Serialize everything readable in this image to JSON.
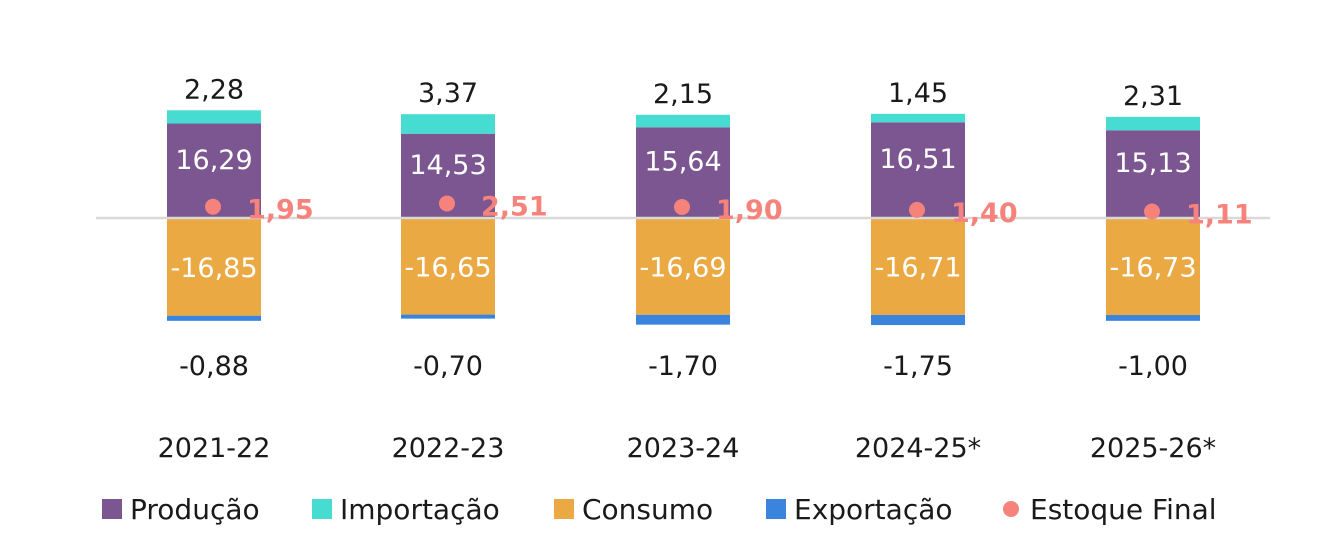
{
  "chart_data": {
    "type": "bar",
    "stacked": true,
    "categories": [
      "2021-22",
      "2022-23",
      "2023-24",
      "2024-25*",
      "2025-26*"
    ],
    "series": [
      {
        "name": "Produção",
        "kind": "bar",
        "color": "#7b5690",
        "values": [
          16.29,
          14.53,
          15.64,
          16.51,
          15.13
        ],
        "labels": [
          "16,29",
          "14,53",
          "15,64",
          "16,51",
          "15,13"
        ]
      },
      {
        "name": "Importação",
        "kind": "bar",
        "color": "#46dcd2",
        "values": [
          2.28,
          3.37,
          2.15,
          1.45,
          2.31
        ],
        "labels": [
          "2,28",
          "3,37",
          "2,15",
          "1,45",
          "2,31"
        ]
      },
      {
        "name": "Consumo",
        "kind": "bar",
        "color": "#eba944",
        "values": [
          -16.85,
          -16.65,
          -16.69,
          -16.71,
          -16.73
        ],
        "labels": [
          "-16,85",
          "-16,65",
          "-16,69",
          "-16,71",
          "-16,73"
        ]
      },
      {
        "name": "Exportação",
        "kind": "bar",
        "color": "#3a84de",
        "values": [
          -0.88,
          -0.7,
          -1.7,
          -1.75,
          -1.0
        ],
        "labels": [
          "-0,88",
          "-0,70",
          "-1,70",
          "-1,75",
          "-1,00"
        ]
      },
      {
        "name": "Estoque Final",
        "kind": "point",
        "color": "#f5837c",
        "values": [
          1.95,
          2.51,
          1.9,
          1.4,
          1.11
        ],
        "labels": [
          "1,95",
          "2,51",
          "1,90",
          "1,40",
          "1,11"
        ]
      }
    ],
    "legend_position": "bottom",
    "grid": false,
    "zero_line_color": "#d9d9d9"
  }
}
